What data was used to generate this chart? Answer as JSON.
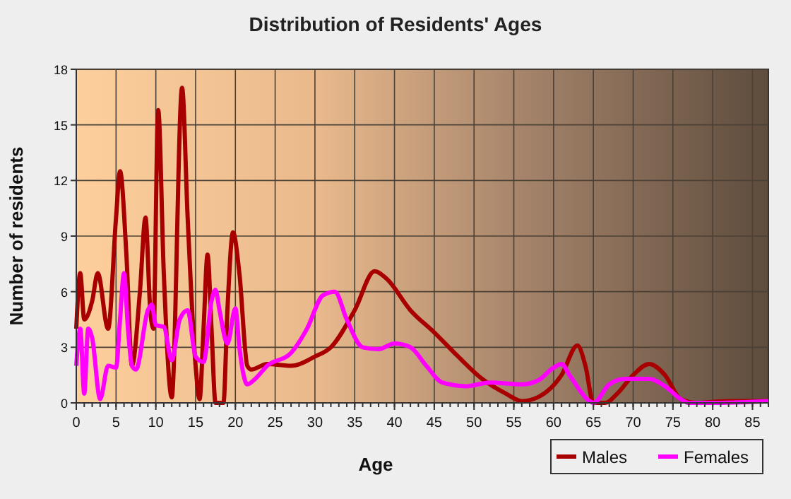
{
  "chart_data": {
    "type": "line",
    "title": "Distribution of Residents' Ages",
    "xlabel": "Age",
    "ylabel": "Number of residents",
    "xlim": [
      0,
      87
    ],
    "xticks": [
      0,
      5,
      10,
      15,
      20,
      25,
      30,
      35,
      40,
      45,
      50,
      55,
      60,
      65,
      70,
      75,
      80,
      85
    ],
    "ylim": [
      0,
      18
    ],
    "yticks": [
      0,
      3,
      6,
      9,
      12,
      15,
      18
    ],
    "grid": true,
    "legend": "bottom right",
    "line_style": "solid",
    "series": [
      {
        "name": "Males",
        "color": "#a80000",
        "x": [
          0,
          0.5,
          1,
          2,
          2.7,
          4,
          5,
          5.5,
          6.3,
          7,
          8,
          8.7,
          9.3,
          9.7,
          10.3,
          11,
          12,
          13.3,
          14,
          15,
          15.5,
          16,
          16.5,
          17,
          17.5,
          18.5,
          19,
          19.7,
          20.5,
          21.5,
          22,
          24,
          27,
          30,
          32,
          35,
          37.5,
          39,
          42,
          45,
          48,
          51,
          54,
          56,
          58,
          61,
          63,
          64,
          65,
          66.5,
          68,
          70,
          72,
          74,
          76,
          78,
          82,
          87
        ],
        "values": [
          4,
          7,
          4.5,
          5.5,
          7,
          4,
          10,
          12.5,
          8,
          2,
          6,
          10,
          5,
          4,
          15.8,
          7,
          0.3,
          17,
          10,
          2,
          0.2,
          4,
          8,
          4,
          0,
          0,
          5,
          9.2,
          7,
          2,
          1.8,
          2.1,
          2,
          2.5,
          3,
          5,
          7.1,
          6.7,
          5,
          3.8,
          2.5,
          1.3,
          0.5,
          0.1,
          0.3,
          1.5,
          3.1,
          2,
          0,
          0,
          0.5,
          1.5,
          2.1,
          1.5,
          0.2,
          0,
          0.1,
          0.1
        ]
      },
      {
        "name": "Females",
        "color": "#ff00ff",
        "x": [
          0,
          0.5,
          1,
          1.5,
          2,
          3,
          4,
          5,
          5.5,
          6,
          6.5,
          7,
          7.5,
          9,
          9.5,
          10,
          11,
          12,
          13,
          14,
          15,
          16,
          17,
          17.5,
          18,
          19,
          20,
          20.5,
          21.5,
          22.5,
          24,
          27,
          29,
          31,
          32.5,
          34,
          36,
          38,
          40,
          42,
          44,
          46,
          49,
          52,
          56,
          58,
          60,
          61,
          62,
          64.5,
          65,
          67,
          69,
          72,
          74,
          76,
          77,
          80,
          87
        ],
        "values": [
          2,
          4,
          0.5,
          4,
          3.5,
          0.2,
          2,
          1.9,
          4.5,
          7,
          4,
          2,
          1.8,
          5,
          5.3,
          4.2,
          4.1,
          2.3,
          4.5,
          5,
          2.5,
          2.2,
          5.5,
          6.1,
          5,
          3.2,
          5.1,
          3,
          1,
          1.3,
          2,
          2.7,
          4,
          5.8,
          6,
          4.5,
          3,
          2.9,
          3.2,
          3,
          2,
          1.1,
          0.9,
          1.1,
          1,
          1.2,
          1.9,
          2.1,
          1.5,
          0.1,
          0,
          1,
          1.3,
          1.3,
          0.9,
          0.2,
          0,
          0,
          0.1
        ]
      }
    ]
  }
}
